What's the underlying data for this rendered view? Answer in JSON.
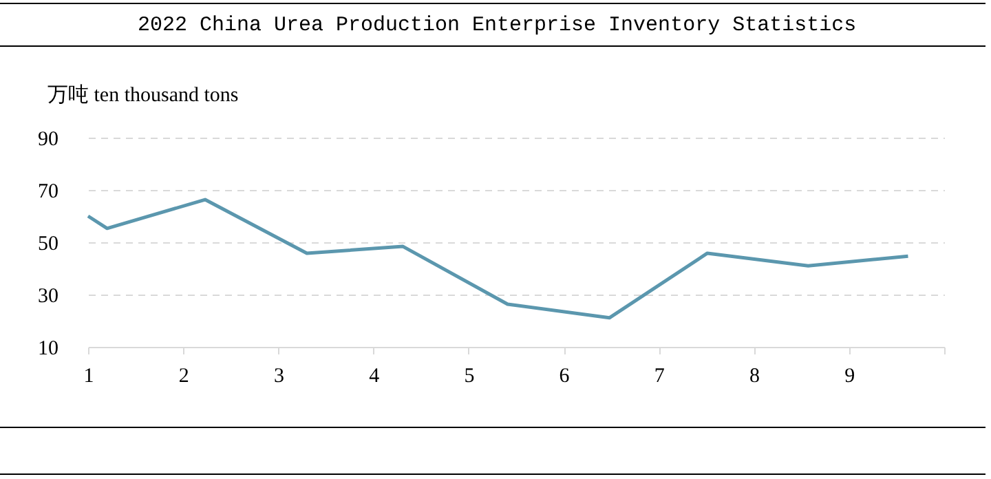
{
  "chart_data": {
    "type": "line",
    "title": "2022 China Urea Production Enterprise Inventory Statistics",
    "ylabel": "万吨 ten thousand tons",
    "x": [
      1,
      1.2,
      2.23,
      3.3,
      4.31,
      5.41,
      6.48,
      7.51,
      8.57,
      9.62
    ],
    "series": [
      {
        "color": "#5b97ae",
        "values": [
          60,
          55.3,
          66.3,
          45.8,
          48.4,
          26.3,
          21.1,
          45.8,
          41.0,
          44.7
        ]
      }
    ],
    "xlim": [
      1,
      10
    ],
    "xticks": [
      1,
      2,
      3,
      4,
      5,
      6,
      7,
      8,
      9,
      {
        "value": 10,
        "label": null
      }
    ],
    "ylim": [
      10,
      90
    ],
    "yticks": [
      10,
      30,
      50,
      70,
      90
    ],
    "grid": "y",
    "marker": "none",
    "line_style": "solid"
  }
}
